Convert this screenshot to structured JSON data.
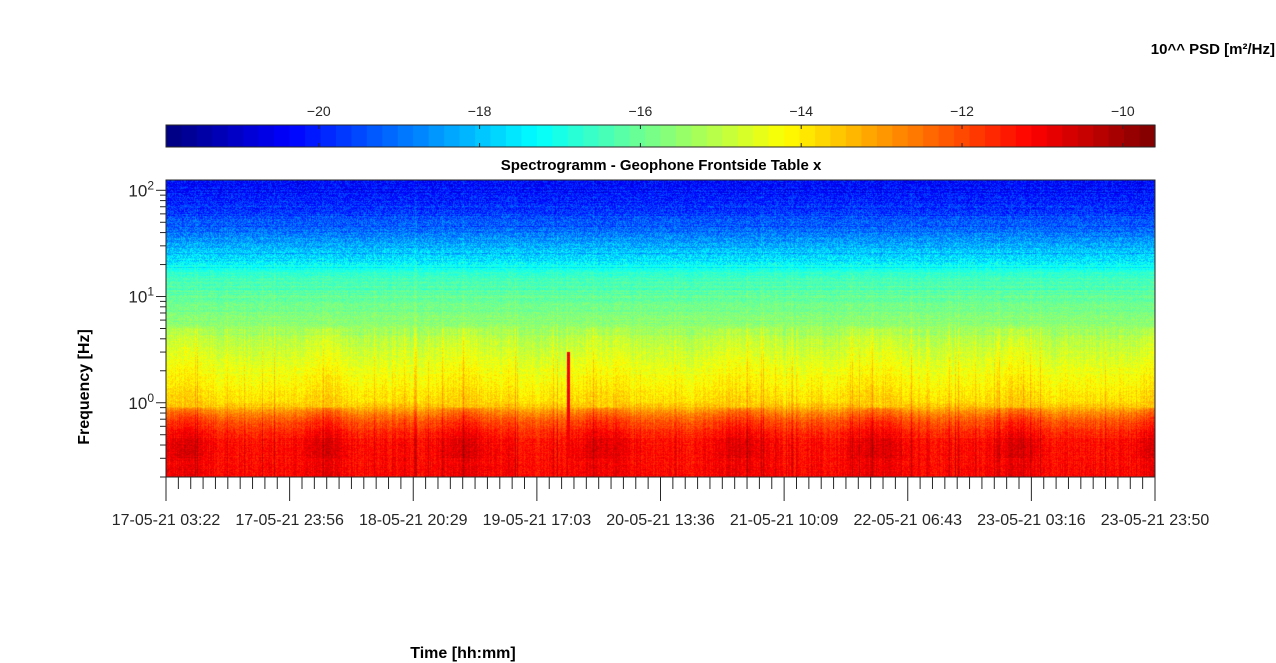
{
  "chart_data": {
    "type": "heatmap",
    "title": "Spectrogramm - Geophone Frontside Table x",
    "xlabel": "Time [hh:mm]",
    "ylabel": "Frequency [Hz]",
    "colorbar_label": "10^^ PSD [m²/Hz]",
    "yscale": "log",
    "ylim": [
      0.2,
      125
    ],
    "y_ticks": [
      {
        "value": 1,
        "base": "10",
        "exp": "0"
      },
      {
        "value": 10,
        "base": "10",
        "exp": "1"
      },
      {
        "value": 100,
        "base": "10",
        "exp": "2"
      }
    ],
    "x_tick_labels": [
      "17-05-21 03:22",
      "17-05-21 23:56",
      "18-05-21 20:29",
      "19-05-21 17:03",
      "20-05-21 13:36",
      "21-05-21 10:09",
      "22-05-21 06:43",
      "23-05-21 03:16",
      "23-05-21 23:50"
    ],
    "colorbar": {
      "colormap": "jet",
      "range": [
        -21.9,
        -9.6
      ],
      "ticks": [
        -20,
        -18,
        -16,
        -14,
        -12,
        -10
      ]
    },
    "psd_profile": {
      "description_levels_log10": [
        {
          "freq_hz": 0.2,
          "level": -11.2
        },
        {
          "freq_hz": 0.45,
          "level": -11.3
        },
        {
          "freq_hz": 0.7,
          "level": -12.3
        },
        {
          "freq_hz": 1.0,
          "level": -13.8
        },
        {
          "freq_hz": 3.0,
          "level": -14.8
        },
        {
          "freq_hz": 6.0,
          "level": -15.6
        },
        {
          "freq_hz": 15.0,
          "level": -16.5
        },
        {
          "freq_hz": 30.0,
          "level": -18.3
        },
        {
          "freq_hz": 60.0,
          "level": -19.6
        },
        {
          "freq_hz": 125.0,
          "level": -20.3
        }
      ]
    },
    "grid": false
  }
}
